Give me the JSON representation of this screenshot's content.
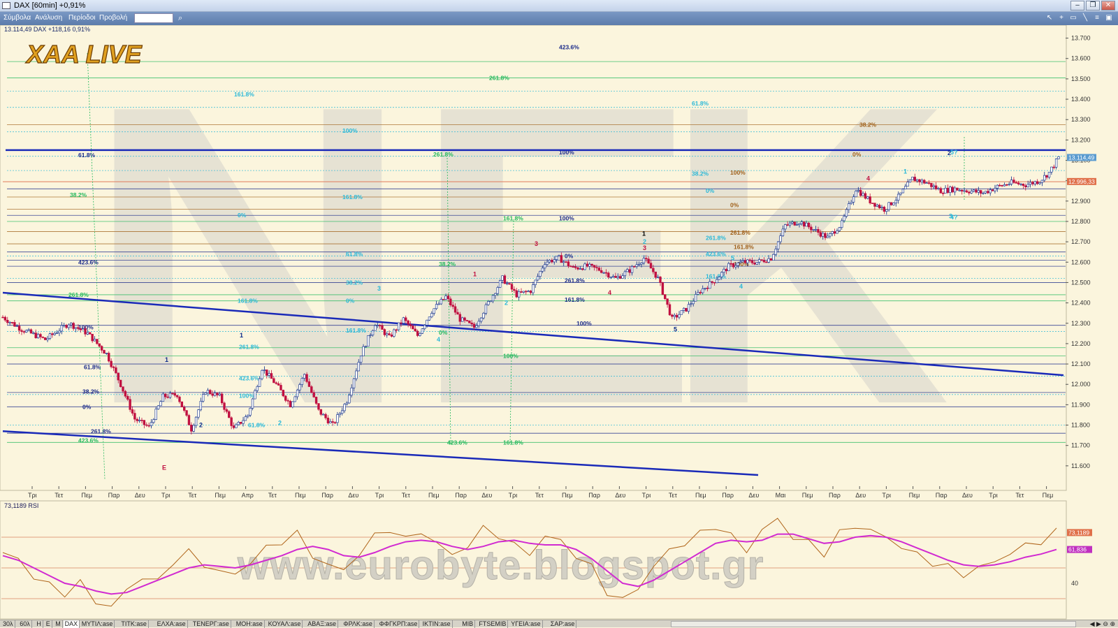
{
  "window": {
    "title": "DAX [60min] +0,91%"
  },
  "menu": {
    "items": [
      "Σύμβολα",
      "Ανάλυση",
      "Περίοδοι",
      "Προβολή"
    ]
  },
  "header": {
    "symbol_line": "13.114,49 DAX +118,16 0,91%",
    "logo": "XAA LIVE"
  },
  "watermark": {
    "text": "www.eurobyte.blogspot.gr",
    "letters": "NEK"
  },
  "colors": {
    "up": "#0a2a8a",
    "down": "#c01040",
    "channel": "#1a2ab8",
    "rsi": "#b0651a",
    "rsi_ma": "#d12ad1",
    "fib_cyan": "#29b8d8",
    "fib_green": "#22b85c",
    "fib_brown": "#a0601a",
    "fib_navy": "#1a2a8a"
  },
  "chart_data": [
    {
      "type": "candlestick",
      "symbol": "DAX",
      "timeframe": "60min",
      "ylim": [
        11500,
        13750
      ],
      "y_ticks": [
        11600,
        11700,
        11800,
        11900,
        12000,
        12100,
        12200,
        12300,
        12400,
        12500,
        12600,
        12700,
        12800,
        12900,
        13000,
        13100,
        13200,
        13300,
        13400,
        13500,
        13600,
        13700
      ],
      "y_tick_labels": [
        "11.600",
        "11.700",
        "11.800",
        "11.900",
        "12.000",
        "12.100",
        "12.200",
        "12.300",
        "12.400",
        "12.500",
        "12.600",
        "12.700",
        "12.800",
        "12.900",
        "13.000",
        "13.100",
        "13.200",
        "13.300",
        "13.400",
        "13.500",
        "13.600",
        "13.700"
      ],
      "x_labels": [
        "Τρι",
        "Τετ",
        "Πεμ",
        "Παρ",
        "Δευ",
        "Τρι",
        "Τετ",
        "Πεμ",
        "Απρ",
        "Τετ",
        "Πεμ",
        "Παρ",
        "Δευ",
        "Τρι",
        "Τετ",
        "Πεμ",
        "Παρ",
        "Δευ",
        "Τρι",
        "Τετ",
        "Πεμ",
        "Παρ",
        "Δευ",
        "Τρι",
        "Τετ",
        "Πεμ",
        "Παρ",
        "Δευ",
        "Μαι",
        "Πεμ",
        "Παρ",
        "Δευ",
        "Τρι",
        "Πεμ",
        "Παρ",
        "Δευ",
        "Τρι",
        "Τετ",
        "Πεμ"
      ],
      "price_path": [
        [
          0,
          12330
        ],
        [
          4,
          12270
        ],
        [
          9,
          12220
        ],
        [
          14,
          12300
        ],
        [
          18,
          12250
        ],
        [
          22,
          12150
        ],
        [
          25,
          12000
        ],
        [
          28,
          11830
        ],
        [
          31,
          11790
        ],
        [
          34,
          11940
        ],
        [
          37,
          11950
        ],
        [
          40,
          11780
        ],
        [
          43,
          11970
        ],
        [
          46,
          11940
        ],
        [
          49,
          11780
        ],
        [
          52,
          11850
        ],
        [
          55,
          12080
        ],
        [
          58,
          12000
        ],
        [
          61,
          11900
        ],
        [
          64,
          12050
        ],
        [
          67,
          11870
        ],
        [
          70,
          11800
        ],
        [
          73,
          11920
        ],
        [
          76,
          12150
        ],
        [
          79,
          12300
        ],
        [
          82,
          12230
        ],
        [
          85,
          12320
        ],
        [
          88,
          12240
        ],
        [
          91,
          12360
        ],
        [
          94,
          12430
        ],
        [
          97,
          12320
        ],
        [
          100,
          12280
        ],
        [
          103,
          12400
        ],
        [
          106,
          12520
        ],
        [
          109,
          12440
        ],
        [
          112,
          12460
        ],
        [
          115,
          12600
        ],
        [
          118,
          12620
        ],
        [
          121,
          12570
        ],
        [
          124,
          12580
        ],
        [
          127,
          12560
        ],
        [
          130,
          12520
        ],
        [
          133,
          12560
        ],
        [
          136,
          12620
        ],
        [
          139,
          12520
        ],
        [
          142,
          12320
        ],
        [
          145,
          12370
        ],
        [
          148,
          12460
        ],
        [
          151,
          12510
        ],
        [
          154,
          12580
        ],
        [
          157,
          12600
        ],
        [
          160,
          12600
        ],
        [
          163,
          12620
        ],
        [
          166,
          12780
        ],
        [
          169,
          12800
        ],
        [
          172,
          12760
        ],
        [
          175,
          12720
        ],
        [
          178,
          12790
        ],
        [
          181,
          12960
        ],
        [
          184,
          12900
        ],
        [
          187,
          12860
        ],
        [
          190,
          12920
        ],
        [
          193,
          13010
        ],
        [
          196,
          12990
        ],
        [
          199,
          12950
        ],
        [
          202,
          12960
        ],
        [
          205,
          12950
        ],
        [
          208,
          12940
        ],
        [
          211,
          12970
        ],
        [
          214,
          12990
        ],
        [
          217,
          12980
        ],
        [
          220,
          13000
        ],
        [
          222,
          13040
        ],
        [
          224,
          13114
        ]
      ],
      "annotations": {
        "wave_labels": [
          "E",
          "1",
          "2",
          "1",
          "2",
          "3",
          "4",
          "1",
          "2",
          "3",
          "4",
          "1",
          "2",
          "3",
          "5",
          "5",
          "4",
          "1",
          "2",
          "3",
          "4",
          "5?",
          "4?"
        ],
        "fib_labels": [
          "423.6%",
          "261.8%",
          "161.8%",
          "100%",
          "61.8%",
          "38.2%",
          "0%",
          "423.6%",
          "161.8%",
          "261.8%",
          "100%",
          "61.8%",
          "38.2%",
          "0%",
          "261.8%",
          "423.6%",
          "161.8%",
          "100%",
          "61.8%",
          "38.2%",
          "0%",
          "161.8%",
          "261.8%",
          "423.6%",
          "100%",
          "61.8%",
          "38.2%",
          "0%",
          "161.8%",
          "100%",
          "261.8%",
          "423.6%",
          "161.8%",
          "100%",
          "0%",
          "261.8%",
          "161.8%",
          "100%",
          "61.8%",
          "38.2%",
          "0%",
          "261.8%",
          "423.6%",
          "161.8%",
          "100%",
          "0%",
          "261.8%",
          "161.8%",
          "100%",
          "38.2%",
          "0%"
        ],
        "price_tags": [
          {
            "text": "13.114,49",
            "value": 13114
          },
          {
            "text": "12.996,33",
            "value": 12996
          }
        ]
      }
    },
    {
      "type": "line",
      "name": "73,1189 RSI",
      "y_tick_labels": [
        "40"
      ],
      "ylim": [
        20,
        90
      ],
      "series": [
        {
          "name": "RSI",
          "value_label": "73,1189",
          "values": [
            60,
            55,
            45,
            38,
            34,
            40,
            28,
            25,
            35,
            45,
            40,
            55,
            60,
            52,
            48,
            45,
            55,
            62,
            68,
            72,
            58,
            52,
            48,
            60,
            70,
            76,
            68,
            74,
            66,
            58,
            65,
            75,
            72,
            64,
            60,
            70,
            68,
            58,
            50,
            35,
            28,
            38,
            50,
            62,
            66,
            72,
            78,
            70,
            62,
            74,
            82,
            70,
            66,
            60,
            72,
            78,
            74,
            70,
            64,
            58,
            54,
            50,
            46,
            50,
            54,
            60,
            64,
            68,
            73
          ]
        },
        {
          "name": "RSI MA",
          "value_label": "61,836",
          "values": [
            58,
            55,
            50,
            45,
            40,
            38,
            35,
            33,
            34,
            38,
            42,
            46,
            50,
            52,
            51,
            50,
            52,
            55,
            58,
            62,
            64,
            62,
            58,
            57,
            60,
            64,
            67,
            68,
            67,
            64,
            62,
            64,
            67,
            68,
            66,
            65,
            65,
            62,
            56,
            48,
            40,
            38,
            42,
            48,
            54,
            60,
            66,
            68,
            67,
            68,
            72,
            72,
            69,
            66,
            67,
            70,
            71,
            70,
            67,
            63,
            59,
            55,
            52,
            51,
            52,
            54,
            57,
            59,
            62
          ]
        }
      ]
    }
  ],
  "bottombar": {
    "tabs": [
      "30λ",
      "60λ",
      "Η",
      "Ε",
      "Μ",
      "DAX",
      "ΜΥΤΙΛ:ase",
      "ΤΙΤΚ:ase",
      "ΕΛΧΑ:ase",
      "ΤΕΝΕΡΓ:ase",
      "ΜΟΗ:ase",
      "ΚΟΥΑΛ:ase",
      "ΑΒΑΞ:ase",
      "ΦΡΛΚ:ase",
      "ΦΦΓΚΡΠ:ase",
      "ΙΚΤΙΝ:ase",
      "ΜΙΒ",
      "FTSEMIB",
      "ΥΓΕΙΑ:ase",
      "ΣΑΡ:ase"
    ]
  }
}
